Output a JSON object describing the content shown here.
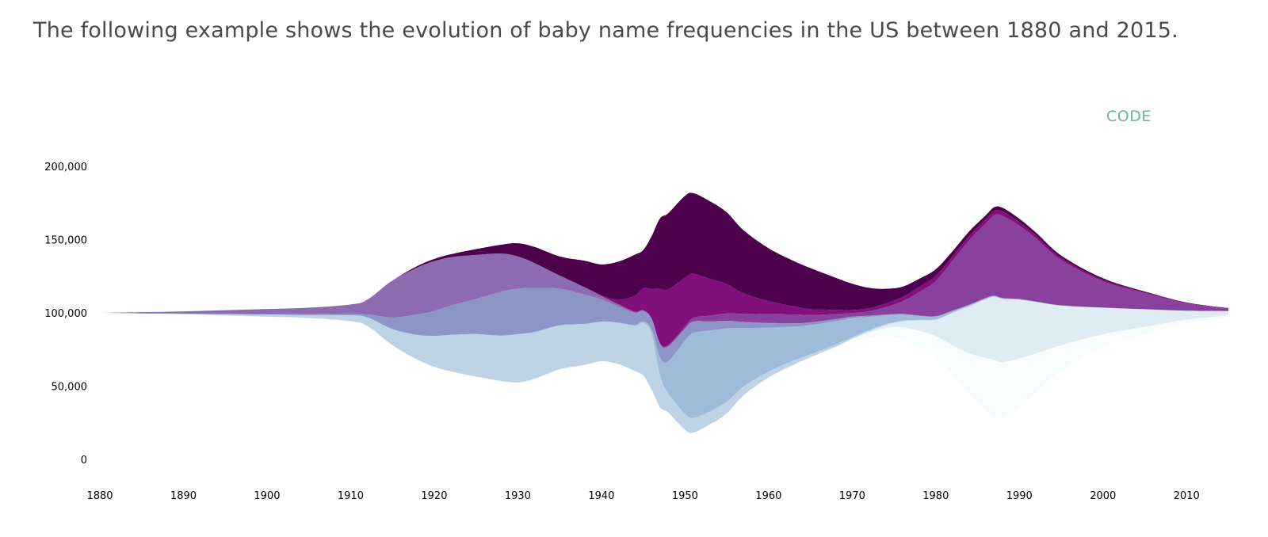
{
  "intro_text": "The following example shows the evolution of baby name frequencies in the US between 1880 and 2015.",
  "code_link_label": "CODE",
  "chart_data": {
    "type": "area",
    "subtype": "streamgraph",
    "title": "",
    "xlabel": "",
    "ylabel": "",
    "xlim": [
      1880,
      2015
    ],
    "ylim": [
      0,
      200000
    ],
    "baseline": 100000,
    "grid": false,
    "legend": "none",
    "x_ticks": [
      1880,
      1890,
      1900,
      1910,
      1920,
      1930,
      1940,
      1950,
      1960,
      1970,
      1980,
      1990,
      2000,
      2010
    ],
    "y_ticks": [
      0,
      50000,
      100000,
      150000,
      200000
    ],
    "y_tick_labels": [
      "0",
      "50,000",
      "100,000",
      "150,000",
      "200,000"
    ],
    "x": [
      1880,
      1885,
      1890,
      1895,
      1900,
      1905,
      1910,
      1912,
      1915,
      1918,
      1920,
      1922,
      1925,
      1928,
      1930,
      1932,
      1935,
      1938,
      1940,
      1942,
      1944,
      1945,
      1946,
      1947,
      1948,
      1950,
      1951,
      1953,
      1955,
      1957,
      1960,
      1963,
      1965,
      1968,
      1970,
      1972,
      1974,
      1976,
      1978,
      1980,
      1982,
      1984,
      1986,
      1987,
      1988,
      1990,
      1992,
      1995,
      2000,
      2005,
      2010,
      2015
    ],
    "series": [
      {
        "color": "#f7fcfd",
        "values": [
          0,
          0,
          0,
          0,
          0,
          0,
          0,
          0,
          0,
          0,
          0,
          0,
          0,
          0,
          0,
          0,
          0,
          0,
          0,
          0,
          0,
          0,
          0,
          0,
          0,
          0,
          0,
          0,
          0,
          0,
          0,
          0,
          200,
          800,
          2000,
          3500,
          6000,
          8000,
          11000,
          14000,
          20000,
          28000,
          36000,
          40000,
          38000,
          33000,
          27000,
          17000,
          9000,
          5000,
          2500,
          1500
        ]
      },
      {
        "color": "#e0ecf4",
        "values": [
          0,
          0,
          0,
          0,
          0,
          0,
          0,
          0,
          0,
          0,
          0,
          0,
          0,
          0,
          0,
          0,
          0,
          0,
          0,
          0,
          0,
          0,
          0,
          0,
          0,
          0,
          0,
          0,
          0,
          0,
          0,
          0,
          0,
          0,
          300,
          1000,
          2000,
          4000,
          7000,
          11000,
          22000,
          32000,
          40000,
          43000,
          43000,
          40000,
          35000,
          27000,
          18000,
          12000,
          6000,
          3000
        ]
      },
      {
        "color": "#bfd3e6",
        "values": [
          0,
          200,
          500,
          1000,
          1500,
          2000,
          4000,
          6000,
          11000,
          17000,
          21000,
          25000,
          29000,
          31000,
          33000,
          32000,
          30000,
          28000,
          27000,
          28000,
          31000,
          36000,
          38000,
          22000,
          13000,
          11000,
          10000,
          9000,
          8000,
          6000,
          4000,
          3000,
          2000,
          1500,
          1000,
          800,
          700,
          600,
          500,
          400,
          300,
          250,
          200,
          200,
          200,
          150,
          100,
          80,
          50,
          30,
          20,
          10
        ]
      },
      {
        "color": "#9ebcda",
        "values": [
          0,
          0,
          0,
          0,
          0,
          0,
          0,
          0,
          0,
          0,
          0,
          0,
          0,
          0,
          0,
          0,
          0,
          0,
          100,
          300,
          600,
          1000,
          3000,
          12000,
          22000,
          50000,
          58000,
          55000,
          50000,
          40000,
          30000,
          23000,
          20000,
          16000,
          13000,
          9000,
          6000,
          4000,
          2500,
          1800,
          1000,
          700,
          500,
          400,
          400,
          300,
          200,
          150,
          100,
          60,
          30,
          20
        ]
      },
      {
        "color": "#8c96c6",
        "values": [
          0,
          0,
          0,
          200,
          300,
          500,
          1000,
          2000,
          8000,
          14000,
          17000,
          20000,
          24000,
          30000,
          31000,
          30000,
          25000,
          20000,
          15000,
          11000,
          8000,
          7000,
          7000,
          9000,
          10000,
          8000,
          7500,
          6000,
          5000,
          4000,
          3000,
          2200,
          1800,
          1300,
          1000,
          800,
          600,
          500,
          400,
          350,
          300,
          250,
          200,
          200,
          200,
          150,
          100,
          80,
          50,
          30,
          20,
          10
        ]
      },
      {
        "color": "#8c6bb1",
        "values": [
          0,
          800,
          1500,
          2500,
          3500,
          4500,
          6500,
          10000,
          25000,
          32000,
          34000,
          33000,
          30000,
          26000,
          22000,
          17000,
          9000,
          5000,
          2500,
          1500,
          900,
          600,
          500,
          400,
          400,
          300,
          300,
          250,
          200,
          180,
          150,
          120,
          100,
          80,
          60,
          50,
          40,
          35,
          30,
          25,
          20,
          18,
          15,
          15,
          15,
          12,
          10,
          8,
          6,
          5,
          4,
          3
        ]
      },
      {
        "color": "#88419d",
        "values": [
          0,
          0,
          0,
          0,
          0,
          0,
          0,
          0,
          0,
          0,
          0,
          0,
          0,
          0,
          0,
          0,
          0,
          0,
          0,
          0,
          0,
          0,
          0,
          400,
          700,
          1500,
          2500,
          4000,
          5000,
          5500,
          6000,
          6000,
          5000,
          3500,
          2500,
          3000,
          5000,
          8500,
          16000,
          24000,
          34000,
          44000,
          51000,
          55000,
          56000,
          50000,
          43000,
          31000,
          18000,
          11000,
          5000,
          1500
        ]
      },
      {
        "color": "#810f7c",
        "values": [
          0,
          0,
          0,
          0,
          0,
          0,
          0,
          0,
          0,
          0,
          0,
          0,
          0,
          0,
          0,
          0,
          0,
          0,
          0,
          0,
          0,
          0,
          0,
          0,
          0,
          0,
          0,
          0,
          0,
          0,
          0,
          0,
          0,
          0,
          0,
          0,
          0,
          0,
          0,
          0,
          0,
          0,
          0,
          0,
          0,
          0,
          0,
          0,
          0,
          0,
          0,
          0
        ]
      },
      {
        "color": "#4d004b",
        "values": [
          0,
          0,
          0,
          0,
          0,
          0,
          0,
          0,
          0,
          0,
          0,
          0,
          0,
          0,
          0,
          0,
          0,
          0,
          0,
          0,
          0,
          0,
          0,
          0,
          0,
          0,
          0,
          0,
          0,
          0,
          0,
          0,
          0,
          0,
          0,
          0,
          0,
          0,
          0,
          0,
          0,
          0,
          0,
          0,
          0,
          0,
          0,
          0,
          0,
          0,
          0,
          0
        ]
      }
    ],
    "series_override": {
      "810f7c": [
        0,
        0,
        0,
        0,
        0,
        0,
        0,
        0,
        0,
        0,
        0,
        0,
        0,
        0,
        0,
        0,
        0,
        0,
        500,
        3000,
        11000,
        15000,
        20000,
        37000,
        38000,
        33000,
        30000,
        25000,
        20000,
        14000,
        9000,
        5500,
        4000,
        2800,
        2000,
        2000,
        2500,
        3000,
        3500,
        3500,
        3000,
        3000,
        3000,
        3000,
        3000,
        2500,
        2000,
        1500,
        1000,
        600,
        300,
        200
      ],
      "4d004b": [
        0,
        0,
        0,
        0,
        0,
        0,
        0,
        0,
        0,
        1000,
        1500,
        2000,
        4000,
        6000,
        9000,
        11000,
        13000,
        18000,
        21000,
        26000,
        28000,
        26000,
        36000,
        48000,
        52000,
        56000,
        55000,
        53000,
        49000,
        43000,
        36000,
        31000,
        28000,
        22000,
        18000,
        14000,
        10000,
        7000,
        5500,
        4500,
        3500,
        3000,
        2500,
        2500,
        2500,
        2200,
        2000,
        1500,
        1000,
        500,
        300,
        200
      ]
    }
  }
}
